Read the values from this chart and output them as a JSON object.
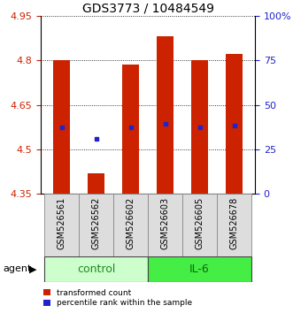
{
  "title": "GDS3773 / 10484549",
  "samples": [
    "GSM526561",
    "GSM526562",
    "GSM526602",
    "GSM526603",
    "GSM526605",
    "GSM526678"
  ],
  "bar_bottoms": [
    4.35,
    4.35,
    4.35,
    4.35,
    4.35,
    4.35
  ],
  "bar_tops": [
    4.8,
    4.42,
    4.785,
    4.88,
    4.8,
    4.82
  ],
  "blue_marks": [
    4.575,
    4.535,
    4.575,
    4.585,
    4.575,
    4.58
  ],
  "ylim": [
    4.35,
    4.95
  ],
  "yticks_left": [
    4.35,
    4.5,
    4.65,
    4.8,
    4.95
  ],
  "yticks_right": [
    0,
    25,
    50,
    75,
    100
  ],
  "yticks_right_labels": [
    "0",
    "25",
    "50",
    "75",
    "100%"
  ],
  "bar_color": "#cc2200",
  "blue_color": "#2222cc",
  "ctrl_color": "#ccffcc",
  "il6_color": "#44ee44",
  "group_label_color": "#228822",
  "agent_label": "agent",
  "legend_entries": [
    "transformed count",
    "percentile rank within the sample"
  ],
  "grid_color": "#000000",
  "left_tick_color": "#cc2200",
  "right_tick_color": "#2222cc",
  "title_fontsize": 10,
  "tick_fontsize": 8,
  "bar_width": 0.5,
  "sample_label_fontsize": 7
}
